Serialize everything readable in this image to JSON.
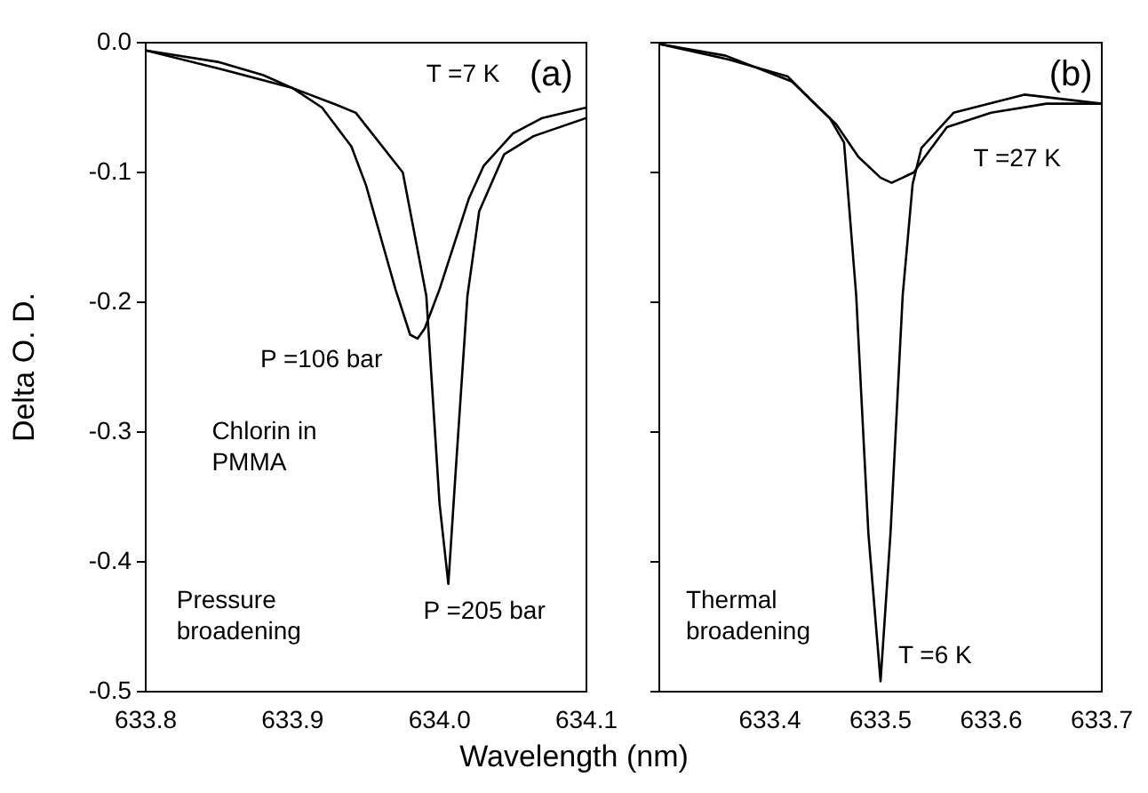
{
  "chart_data": [
    {
      "type": "line",
      "ylabel": "Delta O. D.",
      "xlabel": "Wavelength (nm)",
      "xlim": [
        633.8,
        634.1
      ],
      "xticks": [
        633.8,
        633.9,
        {
          "value": 634,
          "label": "634.0"
        },
        634.1
      ],
      "ylim": [
        -0.5,
        0
      ],
      "yticks": [
        {
          "value": 0,
          "label": "0.0"
        },
        -0.1,
        -0.2,
        -0.3,
        -0.4,
        -0.5
      ],
      "marker": "none",
      "line_style": "solid",
      "annotations": [
        "(a)",
        "T =7 K",
        "Chlorin in\nPMMA",
        "Pressure\nbroadening",
        "P =106 bar",
        "P =205 bar"
      ],
      "series": [
        {
          "color": "#000000",
          "x": [
            633.8,
            633.85,
            633.88,
            633.9,
            633.92,
            633.94,
            633.95,
            633.96,
            633.97,
            633.98,
            633.985,
            633.99,
            634.0,
            634.01,
            634.02,
            634.03,
            634.05,
            634.07,
            634.1
          ],
          "values": [
            -0.006,
            -0.015,
            -0.025,
            -0.035,
            -0.05,
            -0.08,
            -0.11,
            -0.15,
            -0.19,
            -0.225,
            -0.228,
            -0.22,
            -0.19,
            -0.155,
            -0.12,
            -0.095,
            -0.07,
            -0.058,
            -0.05
          ]
        },
        {
          "color": "#000000",
          "x": [
            633.8,
            633.85,
            633.9,
            633.93,
            633.943,
            633.975,
            633.991,
            634.0,
            634.006,
            634.011,
            634.019,
            634.027,
            634.044,
            634.064,
            634.1
          ],
          "values": [
            -0.006,
            -0.02,
            -0.035,
            -0.048,
            -0.054,
            -0.1,
            -0.195,
            -0.355,
            -0.417,
            -0.33,
            -0.195,
            -0.13,
            -0.086,
            -0.072,
            -0.058
          ]
        }
      ]
    },
    {
      "type": "line",
      "xlim": [
        633.3,
        633.7
      ],
      "xticks": [
        {
          "value": 633.3,
          "label": null
        },
        633.4,
        633.5,
        633.6,
        633.7
      ],
      "ylim": [
        -0.5,
        0
      ],
      "yticks": [
        0,
        -0.1,
        -0.2,
        -0.3,
        -0.4,
        -0.5
      ],
      "tick_labels": "x",
      "marker": "none",
      "line_style": "solid",
      "annotations": [
        "(b)",
        "Thermal\nbroadening",
        "T =27 K",
        "T =6 K"
      ],
      "series": [
        {
          "color": "#000000",
          "x": [
            633.3,
            633.363,
            633.416,
            633.438,
            633.454,
            633.467,
            633.478,
            633.489,
            633.5,
            633.509,
            633.52,
            633.529,
            633.537,
            633.566,
            633.63,
            633.7
          ],
          "values": [
            -0.001,
            -0.013,
            -0.026,
            -0.045,
            -0.058,
            -0.077,
            -0.195,
            -0.378,
            -0.492,
            -0.378,
            -0.195,
            -0.109,
            -0.081,
            -0.054,
            -0.04,
            -0.047
          ]
        },
        {
          "color": "#000000",
          "x": [
            633.3,
            633.36,
            633.42,
            633.46,
            633.48,
            633.5,
            633.51,
            633.53,
            633.54,
            633.56,
            633.6,
            633.65,
            633.7
          ],
          "values": [
            -0.001,
            -0.01,
            -0.03,
            -0.063,
            -0.088,
            -0.104,
            -0.108,
            -0.1,
            -0.088,
            -0.065,
            -0.054,
            -0.047,
            -0.047
          ]
        }
      ]
    }
  ]
}
